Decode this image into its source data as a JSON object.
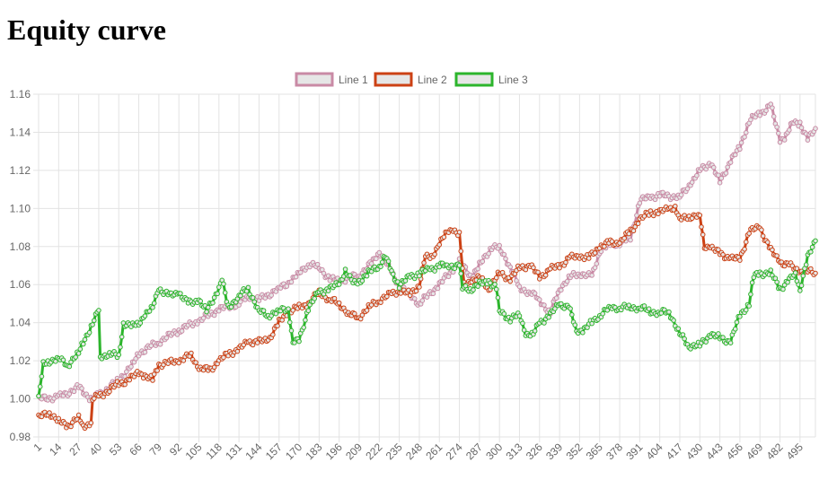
{
  "page": {
    "title": "Equity curve"
  },
  "chart_data": {
    "type": "line",
    "x_start": 1,
    "x_end": 505,
    "x_tick_labels": [
      "1",
      "14",
      "27",
      "40",
      "53",
      "66",
      "79",
      "92",
      "105",
      "118",
      "131",
      "144",
      "157",
      "170",
      "183",
      "196",
      "209",
      "222",
      "235",
      "248",
      "261",
      "274",
      "287",
      "300",
      "313",
      "326",
      "339",
      "352",
      "365",
      "378",
      "391",
      "404",
      "417",
      "430",
      "443",
      "456",
      "469",
      "482",
      "495"
    ],
    "ylim": [
      0.98,
      1.16
    ],
    "y_tick_labels": [
      "0.98",
      "1.00",
      "1.02",
      "1.04",
      "1.06",
      "1.08",
      "1.10",
      "1.12",
      "1.14",
      "1.16"
    ],
    "grid": true,
    "legend_position": "top-center",
    "series": [
      {
        "name": "Line 1",
        "color": "#c98aa5",
        "fill": "#e6e6e6",
        "points": [
          [
            1,
            1.0
          ],
          [
            14,
            1.001
          ],
          [
            27,
            1.006
          ],
          [
            35,
            1.0
          ],
          [
            40,
            1.002
          ],
          [
            53,
            1.01
          ],
          [
            62,
            1.018
          ],
          [
            66,
            1.024
          ],
          [
            79,
            1.03
          ],
          [
            92,
            1.036
          ],
          [
            105,
            1.041
          ],
          [
            118,
            1.047
          ],
          [
            131,
            1.05
          ],
          [
            137,
            1.054
          ],
          [
            144,
            1.052
          ],
          [
            157,
            1.058
          ],
          [
            165,
            1.062
          ],
          [
            170,
            1.066
          ],
          [
            176,
            1.071
          ],
          [
            183,
            1.069
          ],
          [
            190,
            1.063
          ],
          [
            196,
            1.062
          ],
          [
            209,
            1.065
          ],
          [
            218,
            1.072
          ],
          [
            222,
            1.078
          ],
          [
            230,
            1.066
          ],
          [
            235,
            1.06
          ],
          [
            248,
            1.05
          ],
          [
            261,
            1.06
          ],
          [
            270,
            1.068
          ],
          [
            274,
            1.072
          ],
          [
            282,
            1.064
          ],
          [
            287,
            1.07
          ],
          [
            295,
            1.08
          ],
          [
            300,
            1.079
          ],
          [
            307,
            1.07
          ],
          [
            313,
            1.058
          ],
          [
            320,
            1.056
          ],
          [
            326,
            1.052
          ],
          [
            333,
            1.045
          ],
          [
            339,
            1.058
          ],
          [
            346,
            1.064
          ],
          [
            352,
            1.066
          ],
          [
            360,
            1.064
          ],
          [
            365,
            1.078
          ],
          [
            372,
            1.081
          ],
          [
            378,
            1.082
          ],
          [
            385,
            1.084
          ],
          [
            391,
            1.104
          ],
          [
            398,
            1.106
          ],
          [
            404,
            1.107
          ],
          [
            417,
            1.106
          ],
          [
            425,
            1.114
          ],
          [
            430,
            1.12
          ],
          [
            437,
            1.124
          ],
          [
            443,
            1.114
          ],
          [
            450,
            1.125
          ],
          [
            456,
            1.132
          ],
          [
            462,
            1.146
          ],
          [
            469,
            1.15
          ],
          [
            476,
            1.154
          ],
          [
            482,
            1.136
          ],
          [
            486,
            1.138
          ],
          [
            490,
            1.145
          ],
          [
            495,
            1.145
          ],
          [
            500,
            1.136
          ],
          [
            505,
            1.142
          ]
        ]
      },
      {
        "name": "Line 2",
        "color": "#cc4114",
        "fill": "#e6e6e6",
        "points": [
          [
            1,
            0.99
          ],
          [
            8,
            0.993
          ],
          [
            14,
            0.988
          ],
          [
            20,
            0.986
          ],
          [
            27,
            0.99
          ],
          [
            30,
            0.986
          ],
          [
            35,
            0.987
          ],
          [
            36,
            1.0
          ],
          [
            40,
            1.001
          ],
          [
            53,
            1.008
          ],
          [
            60,
            1.01
          ],
          [
            66,
            1.014
          ],
          [
            70,
            1.012
          ],
          [
            75,
            1.01
          ],
          [
            79,
            1.018
          ],
          [
            92,
            1.02
          ],
          [
            100,
            1.023
          ],
          [
            105,
            1.016
          ],
          [
            112,
            1.015
          ],
          [
            118,
            1.02
          ],
          [
            125,
            1.024
          ],
          [
            131,
            1.026
          ],
          [
            137,
            1.03
          ],
          [
            144,
            1.03
          ],
          [
            150,
            1.031
          ],
          [
            157,
            1.04
          ],
          [
            163,
            1.046
          ],
          [
            170,
            1.048
          ],
          [
            176,
            1.05
          ],
          [
            183,
            1.056
          ],
          [
            190,
            1.052
          ],
          [
            196,
            1.05
          ],
          [
            203,
            1.044
          ],
          [
            209,
            1.043
          ],
          [
            215,
            1.048
          ],
          [
            222,
            1.052
          ],
          [
            230,
            1.055
          ],
          [
            235,
            1.057
          ],
          [
            242,
            1.055
          ],
          [
            248,
            1.06
          ],
          [
            252,
            1.074
          ],
          [
            256,
            1.075
          ],
          [
            261,
            1.081
          ],
          [
            266,
            1.088
          ],
          [
            270,
            1.089
          ],
          [
            274,
            1.086
          ],
          [
            277,
            1.06
          ],
          [
            282,
            1.062
          ],
          [
            287,
            1.064
          ],
          [
            293,
            1.058
          ],
          [
            300,
            1.066
          ],
          [
            307,
            1.063
          ],
          [
            313,
            1.069
          ],
          [
            320,
            1.07
          ],
          [
            326,
            1.064
          ],
          [
            333,
            1.068
          ],
          [
            339,
            1.07
          ],
          [
            346,
            1.074
          ],
          [
            352,
            1.075
          ],
          [
            358,
            1.074
          ],
          [
            365,
            1.08
          ],
          [
            372,
            1.082
          ],
          [
            378,
            1.082
          ],
          [
            385,
            1.088
          ],
          [
            391,
            1.094
          ],
          [
            398,
            1.098
          ],
          [
            404,
            1.098
          ],
          [
            410,
            1.1
          ],
          [
            414,
            1.101
          ],
          [
            417,
            1.094
          ],
          [
            423,
            1.096
          ],
          [
            430,
            1.096
          ],
          [
            433,
            1.08
          ],
          [
            437,
            1.08
          ],
          [
            443,
            1.076
          ],
          [
            450,
            1.074
          ],
          [
            456,
            1.073
          ],
          [
            462,
            1.088
          ],
          [
            469,
            1.09
          ],
          [
            476,
            1.078
          ],
          [
            482,
            1.072
          ],
          [
            488,
            1.07
          ],
          [
            495,
            1.067
          ],
          [
            500,
            1.067
          ],
          [
            505,
            1.066
          ]
        ]
      },
      {
        "name": "Line 3",
        "color": "#2cb52c",
        "fill": "#e6e6e6",
        "points": [
          [
            1,
            1.0
          ],
          [
            4,
            1.018
          ],
          [
            8,
            1.02
          ],
          [
            14,
            1.021
          ],
          [
            20,
            1.018
          ],
          [
            27,
            1.024
          ],
          [
            30,
            1.03
          ],
          [
            35,
            1.038
          ],
          [
            40,
            1.046
          ],
          [
            41,
            1.022
          ],
          [
            47,
            1.024
          ],
          [
            53,
            1.022
          ],
          [
            56,
            1.04
          ],
          [
            62,
            1.038
          ],
          [
            66,
            1.04
          ],
          [
            70,
            1.044
          ],
          [
            75,
            1.048
          ],
          [
            79,
            1.058
          ],
          [
            86,
            1.054
          ],
          [
            92,
            1.056
          ],
          [
            98,
            1.05
          ],
          [
            105,
            1.052
          ],
          [
            110,
            1.046
          ],
          [
            118,
            1.058
          ],
          [
            120,
            1.062
          ],
          [
            124,
            1.048
          ],
          [
            131,
            1.054
          ],
          [
            137,
            1.058
          ],
          [
            144,
            1.046
          ],
          [
            150,
            1.044
          ],
          [
            157,
            1.046
          ],
          [
            163,
            1.048
          ],
          [
            166,
            1.03
          ],
          [
            170,
            1.03
          ],
          [
            176,
            1.048
          ],
          [
            183,
            1.056
          ],
          [
            190,
            1.058
          ],
          [
            196,
            1.06
          ],
          [
            200,
            1.068
          ],
          [
            205,
            1.06
          ],
          [
            209,
            1.062
          ],
          [
            215,
            1.066
          ],
          [
            222,
            1.07
          ],
          [
            226,
            1.075
          ],
          [
            230,
            1.066
          ],
          [
            235,
            1.06
          ],
          [
            242,
            1.064
          ],
          [
            248,
            1.066
          ],
          [
            255,
            1.068
          ],
          [
            261,
            1.07
          ],
          [
            266,
            1.07
          ],
          [
            274,
            1.07
          ],
          [
            276,
            1.058
          ],
          [
            282,
            1.058
          ],
          [
            287,
            1.06
          ],
          [
            293,
            1.062
          ],
          [
            298,
            1.058
          ],
          [
            300,
            1.046
          ],
          [
            307,
            1.042
          ],
          [
            313,
            1.044
          ],
          [
            317,
            1.034
          ],
          [
            322,
            1.034
          ],
          [
            326,
            1.04
          ],
          [
            333,
            1.044
          ],
          [
            339,
            1.05
          ],
          [
            345,
            1.048
          ],
          [
            350,
            1.036
          ],
          [
            354,
            1.036
          ],
          [
            360,
            1.04
          ],
          [
            365,
            1.044
          ],
          [
            372,
            1.048
          ],
          [
            378,
            1.048
          ],
          [
            385,
            1.048
          ],
          [
            391,
            1.048
          ],
          [
            398,
            1.046
          ],
          [
            404,
            1.045
          ],
          [
            410,
            1.046
          ],
          [
            417,
            1.034
          ],
          [
            423,
            1.028
          ],
          [
            430,
            1.028
          ],
          [
            437,
            1.034
          ],
          [
            443,
            1.032
          ],
          [
            450,
            1.03
          ],
          [
            456,
            1.044
          ],
          [
            462,
            1.05
          ],
          [
            465,
            1.064
          ],
          [
            469,
            1.066
          ],
          [
            476,
            1.066
          ],
          [
            482,
            1.058
          ],
          [
            488,
            1.062
          ],
          [
            492,
            1.066
          ],
          [
            495,
            1.058
          ],
          [
            500,
            1.074
          ],
          [
            505,
            1.083
          ]
        ]
      }
    ]
  }
}
